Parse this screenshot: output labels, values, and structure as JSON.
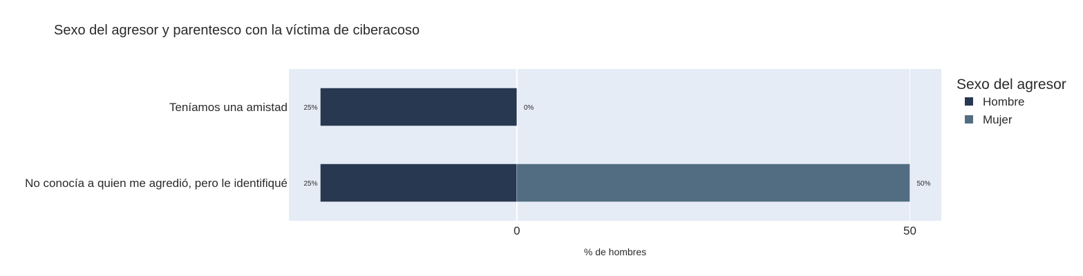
{
  "chart_data": {
    "type": "bar",
    "orientation": "horizontal",
    "barmode": "relative",
    "title": "Sexo del agresor y parentesco con la víctima de ciberacoso",
    "xlabel": "% de hombres",
    "ylabel": "",
    "xlim": [
      -29,
      54
    ],
    "xticks": [
      0,
      50
    ],
    "grid": true,
    "legend_title": "Sexo del agresor",
    "legend_position": "right",
    "plot_background": "#e5ecf6",
    "categories": [
      "Teníamos una amistad",
      "No conocía a quien me agredió, pero le identifiqué"
    ],
    "series": [
      {
        "name": "Hombre",
        "color": "#283850",
        "values": [
          -25,
          -25
        ],
        "labels": [
          "25%",
          "25%"
        ]
      },
      {
        "name": "Mujer",
        "color": "#526d82",
        "values": [
          0,
          50
        ],
        "labels": [
          "0%",
          "50%"
        ]
      }
    ]
  }
}
